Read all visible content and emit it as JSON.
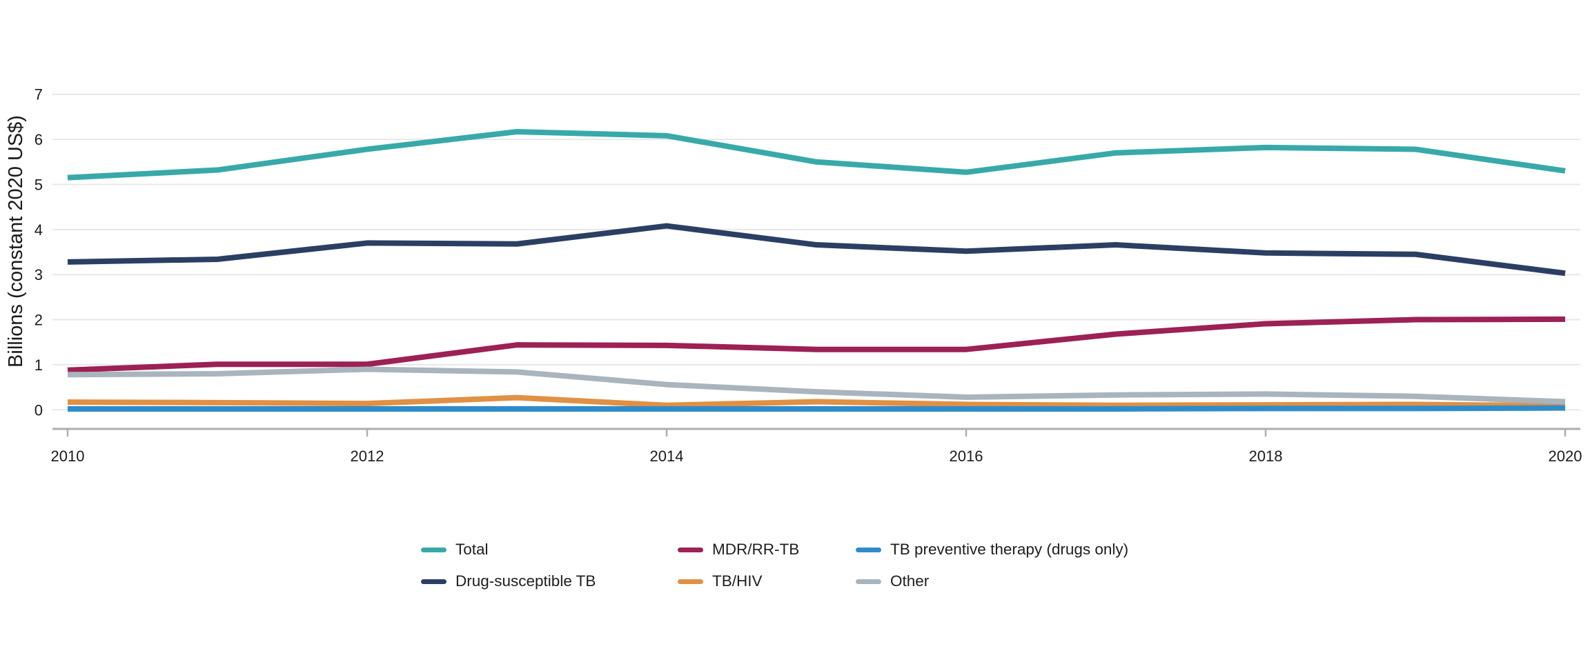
{
  "chart_data": {
    "type": "line",
    "title": "",
    "ylabel": "Billions (constant 2020 US$)",
    "xlabel": "",
    "x": [
      2010,
      2011,
      2012,
      2013,
      2014,
      2015,
      2016,
      2017,
      2018,
      2019,
      2020
    ],
    "x_tick_labels": [
      "2010",
      "2012",
      "2014",
      "2016",
      "2018",
      "2020"
    ],
    "x_tick_values": [
      2010,
      2012,
      2014,
      2016,
      2018,
      2020
    ],
    "y_tick_labels": [
      "0",
      "1",
      "2",
      "3",
      "4",
      "5",
      "6",
      "7"
    ],
    "y_tick_values": [
      0,
      1,
      2,
      3,
      4,
      5,
      6,
      7
    ],
    "ylim": [
      0,
      7
    ],
    "xlim": [
      2010,
      2020
    ],
    "grid": "horizontal-only",
    "legend_position": "bottom",
    "colors": {
      "background": "#FFFFFF",
      "gridline": "#E7E7E7",
      "axis_line": "#ADADAD",
      "tick_mark": "#ADADAD",
      "tick_text": "#1A1A1A",
      "axis_title_text": "#1A1A1A",
      "legend_text": "#1D1D1D"
    },
    "series": [
      {
        "name": "Total",
        "color": "#38A9A9",
        "values": [
          5.15,
          5.32,
          5.78,
          6.17,
          6.08,
          5.5,
          5.27,
          5.7,
          5.82,
          5.78,
          5.3
        ]
      },
      {
        "name": "Drug-susceptible TB",
        "color": "#2B3F63",
        "values": [
          3.28,
          3.34,
          3.7,
          3.68,
          4.08,
          3.66,
          3.52,
          3.66,
          3.48,
          3.45,
          3.03
        ]
      },
      {
        "name": "MDR/RR-TB",
        "color": "#9C2155",
        "values": [
          0.88,
          1.01,
          1.01,
          1.44,
          1.43,
          1.34,
          1.34,
          1.68,
          1.91,
          2.0,
          2.01
        ]
      },
      {
        "name": "TB/HIV",
        "color": "#E09145",
        "values": [
          0.17,
          0.16,
          0.14,
          0.27,
          0.1,
          0.18,
          0.12,
          0.1,
          0.11,
          0.12,
          0.09
        ]
      },
      {
        "name": "TB preventive therapy (drugs only)",
        "color": "#2F8CCB",
        "values": [
          0.02,
          0.02,
          0.02,
          0.02,
          0.02,
          0.02,
          0.02,
          0.02,
          0.03,
          0.03,
          0.04
        ]
      },
      {
        "name": "Other",
        "color": "#AAB4BD",
        "values": [
          0.78,
          0.8,
          0.9,
          0.84,
          0.56,
          0.4,
          0.28,
          0.33,
          0.35,
          0.3,
          0.18
        ]
      }
    ]
  }
}
